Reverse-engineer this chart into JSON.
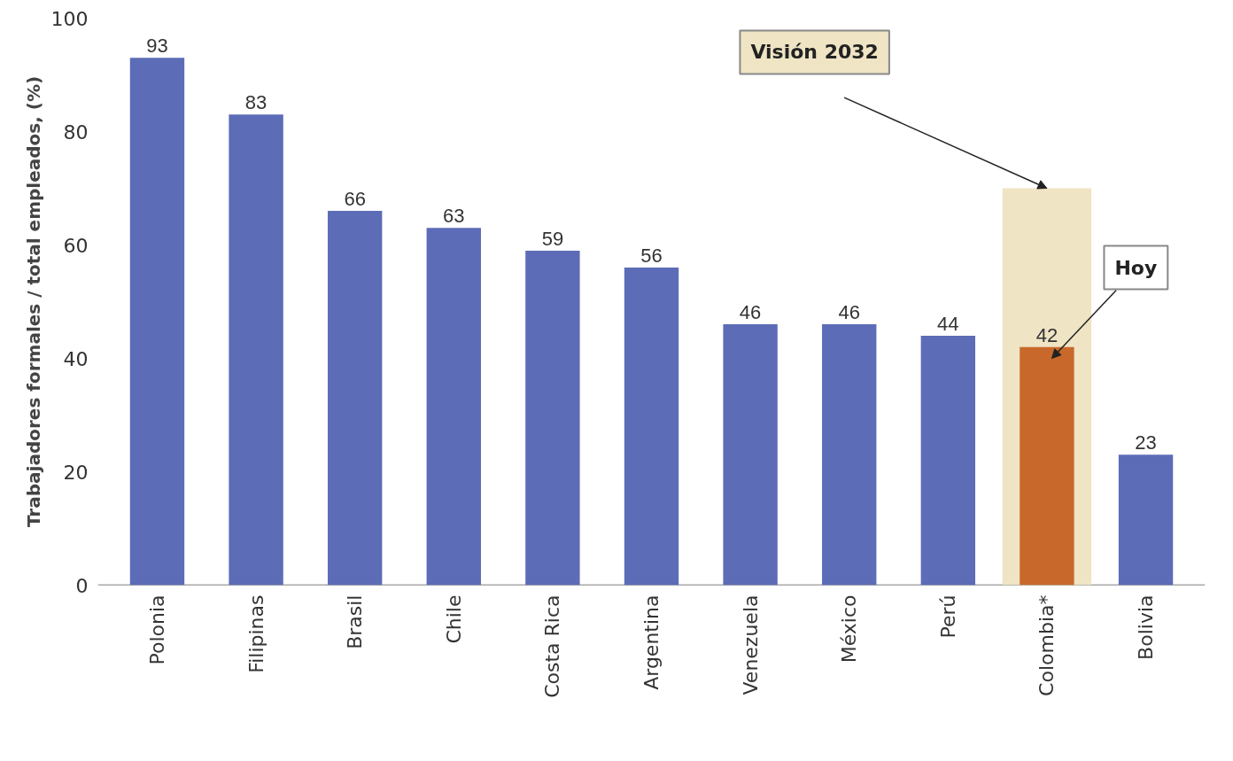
{
  "chart_data": {
    "type": "bar",
    "ylabel": "Trabajadores formales / total empleados, (%)",
    "categories": [
      "Polonia",
      "Filipinas",
      "Brasil",
      "Chile",
      "Costa Rica",
      "Argentina",
      "Venezuela",
      "México",
      "Perú",
      "Colombia*",
      "Bolivia"
    ],
    "series": [
      {
        "name": "Visión 2032",
        "color": "#efe4c4",
        "values": [
          null,
          null,
          null,
          null,
          null,
          null,
          null,
          null,
          null,
          70,
          null
        ]
      },
      {
        "name": "Hoy",
        "colors": [
          "#5c6cb6",
          "#5c6cb6",
          "#5c6cb6",
          "#5c6cb6",
          "#5c6cb6",
          "#5c6cb6",
          "#5c6cb6",
          "#5c6cb6",
          "#5c6cb6",
          "#c8692b",
          "#5c6cb6"
        ],
        "values": [
          93,
          83,
          66,
          63,
          59,
          56,
          46,
          46,
          44,
          42,
          23
        ],
        "data_labels": true
      }
    ],
    "ylim": [
      0,
      100
    ],
    "yticks": [
      0,
      20,
      40,
      60,
      80,
      100
    ],
    "grid": false,
    "legend": false
  }
}
